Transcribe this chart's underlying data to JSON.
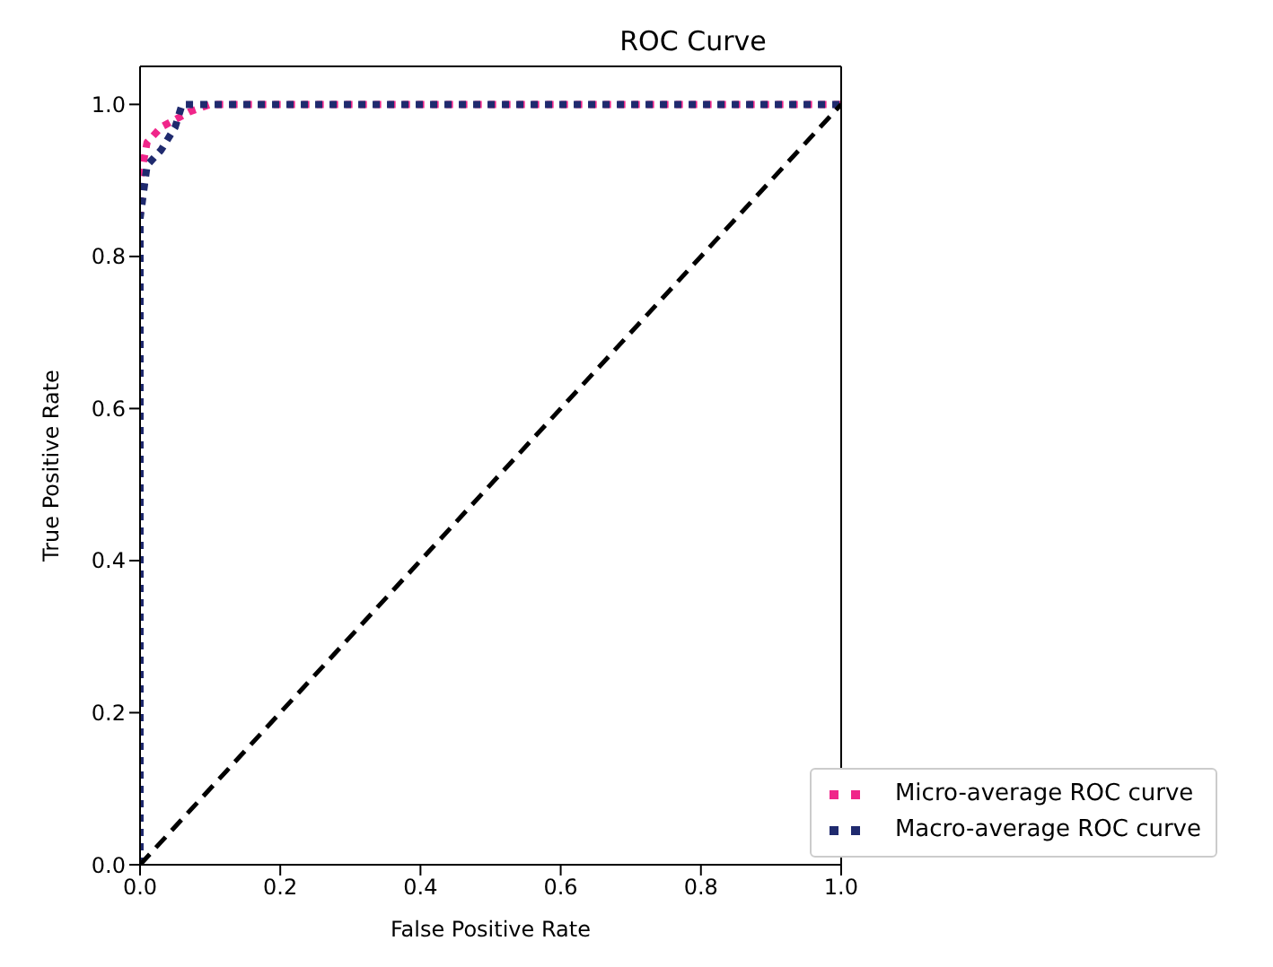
{
  "chart_data": {
    "type": "line",
    "title": "ROC Curve",
    "xlabel": "False Positive Rate",
    "ylabel": "True Positive Rate",
    "xlim": [
      0,
      1
    ],
    "ylim": [
      0,
      1.05
    ],
    "xticks": [
      {
        "value": 0,
        "label": "0.0"
      },
      0.2,
      0.4,
      0.6,
      0.8,
      {
        "value": 1,
        "label": "1.0"
      }
    ],
    "yticks": [
      {
        "value": 0,
        "label": "0.0"
      },
      0.2,
      0.4,
      0.6,
      0.8,
      {
        "value": 1,
        "label": "1.0"
      }
    ],
    "grid": false,
    "legend": "bottom right",
    "series": [
      {
        "name": "Micro-average ROC curve",
        "color": "#f0268a",
        "line_style": "dotted",
        "x": [
          0,
          0,
          0.01,
          0.03,
          0.05,
          0.07,
          0.1,
          1
        ],
        "values": [
          0,
          0.9,
          0.95,
          0.97,
          0.98,
          0.99,
          1,
          1
        ]
      },
      {
        "name": "Macro-average ROC curve",
        "color": "#1f2a6e",
        "line_style": "dotted",
        "x": [
          0,
          0,
          0.01,
          0.03,
          0.05,
          0.06,
          1
        ],
        "values": [
          0,
          0.85,
          0.92,
          0.94,
          0.97,
          1,
          1
        ]
      },
      {
        "color": "#000000",
        "line_style": "dashed",
        "x": [
          0,
          1
        ],
        "values": [
          0,
          1
        ]
      }
    ]
  }
}
